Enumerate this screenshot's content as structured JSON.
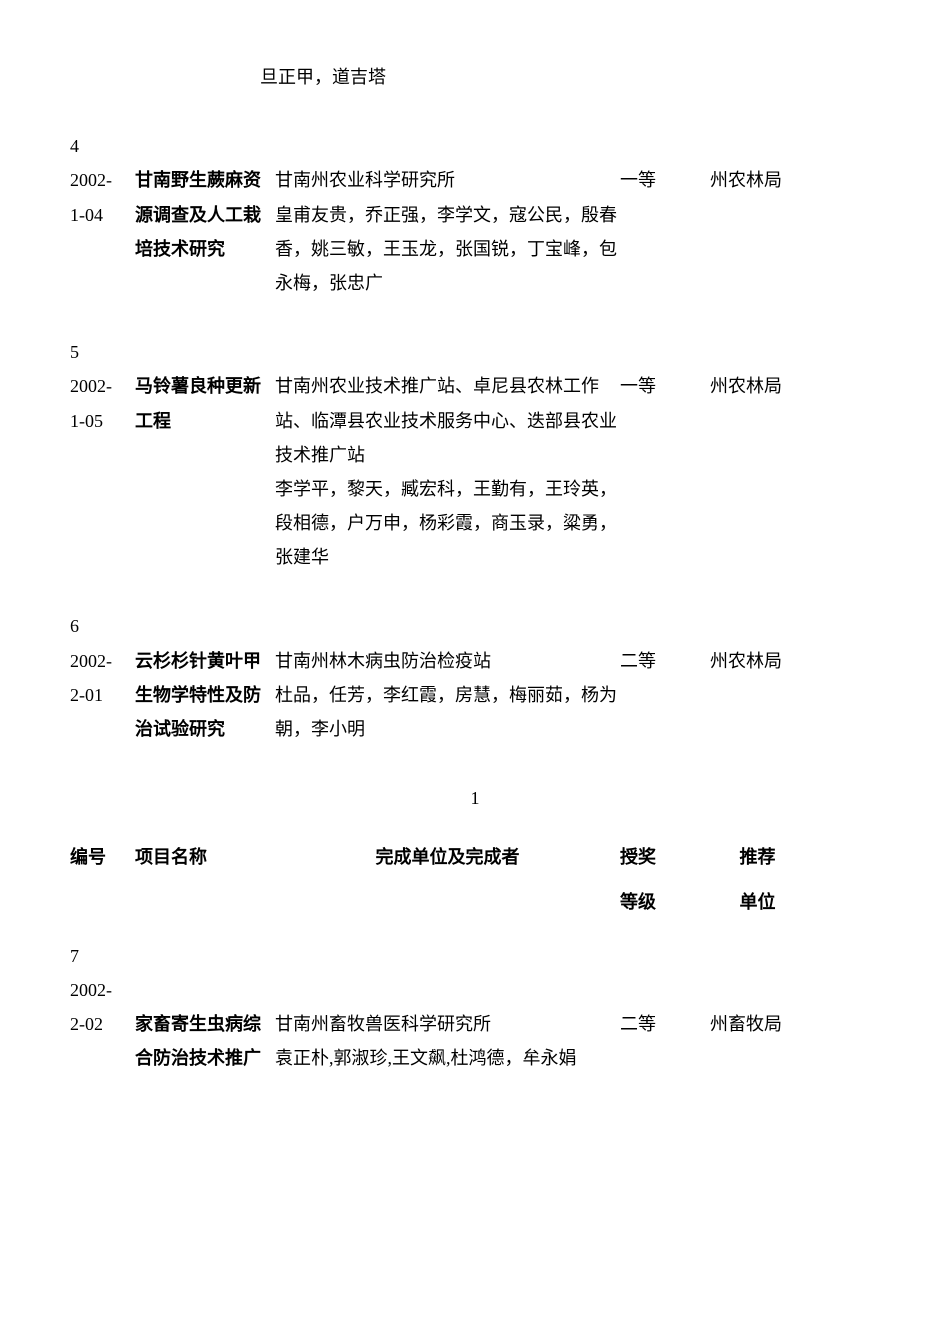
{
  "top_names": "旦正甲，道吉塔",
  "entries": [
    {
      "num": "4",
      "code_top": "2002-",
      "code_bottom": "1-04",
      "project_line1": "甘南野生蕨麻资",
      "project_line2_bold": "源调查及人工栽",
      "project_line3_bold": "培技术研究",
      "org": "甘南州农业科学研究所",
      "people_suffix": "皇甫友贵，乔正强，李学文，寇公民，殷春香，姚三敏，王玉龙，张国锐，丁宝峰，包永梅，张忠广",
      "award": "一等",
      "recommend": "州农林局"
    },
    {
      "num": "5",
      "code_top": "2002-",
      "code_bottom": "1-05",
      "project_line1": "马铃薯良种更新",
      "project_line2_bold": "工程",
      "project_line3_bold": "",
      "org": "",
      "people_suffix": "甘南州农业技术推广站、卓尼县农林工作站、临潭县农业技术服务中心、迭部县农业技术推广站\n李学平，黎天，臧宏科，王勤有，王玲英，段相德，户万申，杨彩霞，商玉录，粱勇，张建华",
      "award": "一等",
      "recommend": "州农林局"
    },
    {
      "num": "6",
      "code_top": "2002-",
      "code_bottom": "2-01",
      "project_line1": "云杉杉针黄叶甲",
      "project_line2_bold": "生物学特性及防",
      "project_line3_bold": "治试验研究",
      "org": "甘南州林木病虫防治检疫站",
      "people_suffix": "杜品，任芳，李红霞，房慧，梅丽茹，杨为朝，李小明",
      "award": "二等",
      "recommend": "州农林局"
    }
  ],
  "page_number": "1",
  "headers": {
    "h1": "编号",
    "h2": "项目名称",
    "h3": "完成单位及完成者",
    "h4": "授奖",
    "h5": "推荐",
    "s4": "等级",
    "s5": "单位"
  },
  "entry7": {
    "num": "7",
    "code_top": "2002-",
    "code_bottom": "2-02",
    "project_line2_bold": "家畜寄生虫病综",
    "project_line3_bold": "合防治技术推广",
    "org": "甘南州畜牧兽医科学研究所",
    "people_suffix": "袁正朴,郭淑珍,王文飙,杜鸿德，牟永娟",
    "award": "二等",
    "recommend": "州畜牧局"
  }
}
